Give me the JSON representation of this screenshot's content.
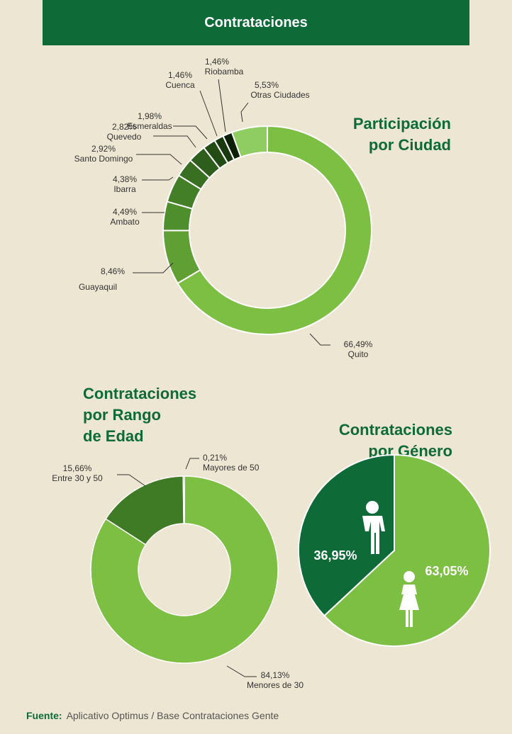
{
  "header": {
    "title": "Contrataciones"
  },
  "chart_data": [
    {
      "type": "donut",
      "title": "Participación\npor Ciudad",
      "categories": [
        "Quito",
        "Guayaquil",
        "Ambato",
        "Ibarra",
        "Santo Domingo",
        "Quevedo",
        "Esmeraldas",
        "Cuenca",
        "Riobamba",
        "Otras Ciudades"
      ],
      "values": [
        66.49,
        8.46,
        4.49,
        4.38,
        2.92,
        2.82,
        1.98,
        1.46,
        1.46,
        5.53
      ],
      "value_labels": [
        "66,49%",
        "8,46%",
        "4,49%",
        "4,38%",
        "2,92%",
        "2,82%",
        "1,98%",
        "1,46%",
        "1,46%",
        "5,53%"
      ],
      "colors": [
        "#7dbf43",
        "#5f9f33",
        "#4f8e2c",
        "#437f27",
        "#386f21",
        "#2d5e1b",
        "#234c15",
        "#193a0f",
        "#0c1f07",
        "#8fcc62"
      ]
    },
    {
      "type": "donut",
      "title": "Contrataciones\npor Rango\nde Edad",
      "categories": [
        "Menores de 30",
        "Entre 30 y 50",
        "Mayores de 50"
      ],
      "values": [
        84.13,
        15.66,
        0.21
      ],
      "value_labels": [
        "84,13%",
        "15,66%",
        "0,21%"
      ],
      "colors": [
        "#7dbf43",
        "#3f7a25",
        "#1f3d12"
      ]
    },
    {
      "type": "pie",
      "title": "Contrataciones\npor Género",
      "values": [
        63.05,
        36.95
      ],
      "value_labels": [
        "63,05%",
        "36,95%"
      ],
      "colors": [
        "#7dbf43",
        "#0e6b38"
      ]
    }
  ],
  "footer": {
    "label": "Fuente:",
    "text": "Aplicativo Optimus / Base Contrataciones Gente"
  }
}
